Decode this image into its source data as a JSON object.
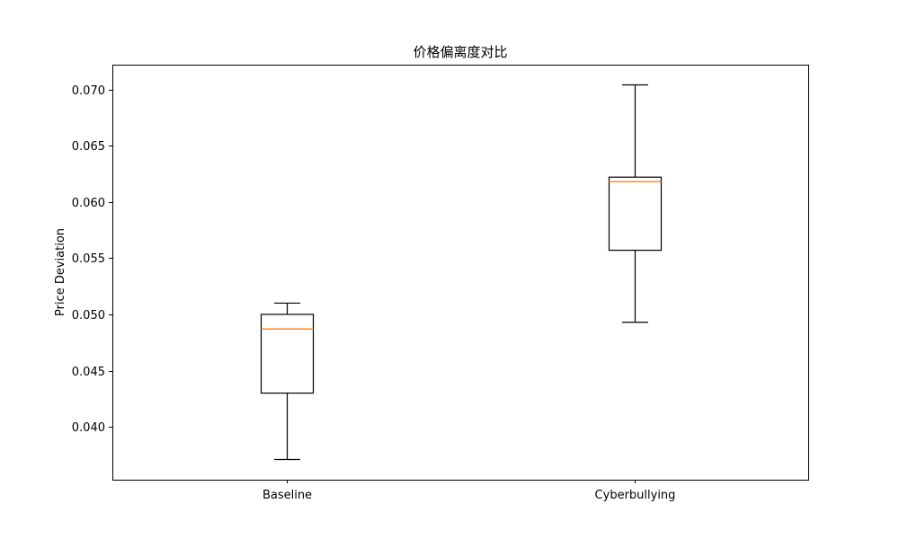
{
  "chart_data": {
    "type": "box",
    "title": "价格偏离度对比",
    "xlabel": "",
    "ylabel": "Price Deviation",
    "ylim": [
      0.0353,
      0.0722
    ],
    "yticks": [
      "0.040",
      "0.045",
      "0.050",
      "0.055",
      "0.060",
      "0.065",
      "0.070"
    ],
    "categories": [
      "Baseline",
      "Cyberbullying"
    ],
    "boxes": [
      {
        "label": "Baseline",
        "whisker_low": 0.0371,
        "q1": 0.043,
        "median": 0.0487,
        "q3": 0.05,
        "whisker_high": 0.051
      },
      {
        "label": "Cyberbullying",
        "whisker_low": 0.0493,
        "q1": 0.0557,
        "median": 0.0618,
        "q3": 0.0622,
        "whisker_high": 0.0704
      }
    ],
    "colors": {
      "box": "#000000",
      "median": "#ff7f0e"
    },
    "grid": false
  }
}
